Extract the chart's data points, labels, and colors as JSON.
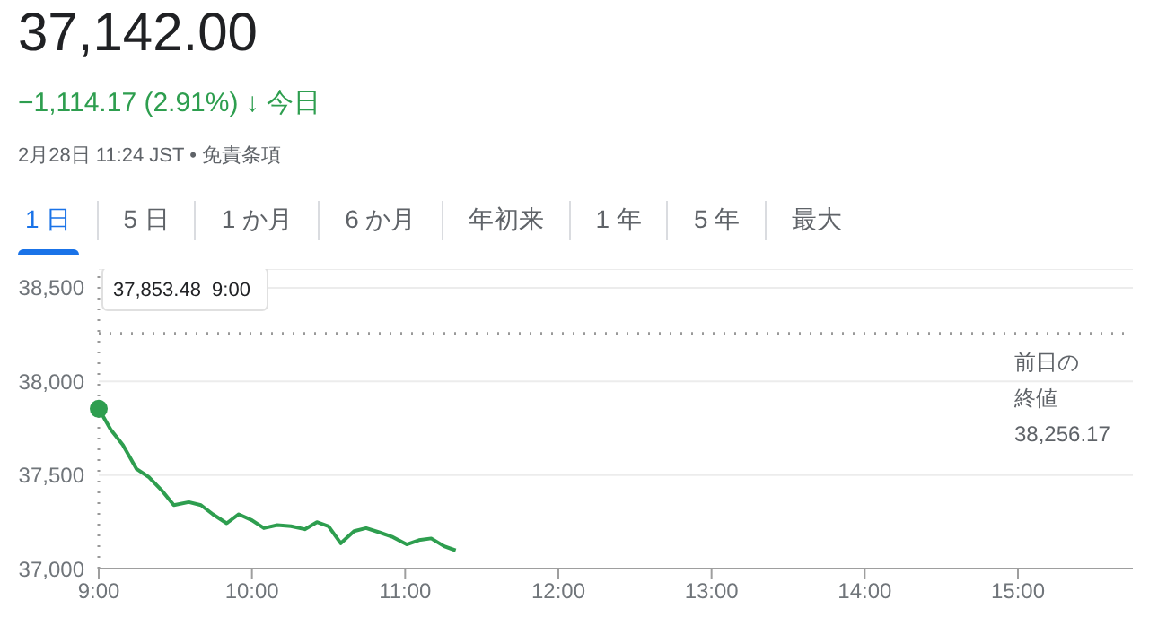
{
  "chart_data": {
    "type": "line",
    "title": "37,142.00",
    "subtitle": "−1,114.17 (2.91%) ↓ 今日",
    "annotations": [
      "2月28日 11:24 JST • 免責条項",
      "1 日",
      "5 日",
      "1 か月",
      "6 か月",
      "年初来",
      "1 年",
      "5 年",
      "最大",
      "37,853.48  9:00"
    ],
    "x": [
      9,
      9.078,
      9.157,
      9.247,
      9.325,
      9.41,
      9.49,
      9.588,
      9.667,
      9.745,
      9.835,
      9.914,
      10,
      10.078,
      10.165,
      10.255,
      10.345,
      10.424,
      10.5,
      10.58,
      10.667,
      10.745,
      10.83,
      10.92,
      11.01,
      11.09,
      11.17,
      11.255,
      11.33
    ],
    "series": [
      {
        "color": "#2e9e4f",
        "values": [
          37853.48,
          37742,
          37661,
          37532,
          37490,
          37419,
          37339,
          37355,
          37339,
          37290,
          37242,
          37290,
          37258,
          37216,
          37232,
          37226,
          37210,
          37248,
          37226,
          37135,
          37200,
          37216,
          37194,
          37168,
          37129,
          37152,
          37161,
          37119,
          37097
        ]
      }
    ],
    "xlim": [
      9,
      15.75
    ],
    "xticks": [
      {
        "value": 9,
        "label": "9:00"
      },
      {
        "value": 10,
        "label": "10:00"
      },
      {
        "value": 11,
        "label": "11:00"
      },
      {
        "value": 12,
        "label": "12:00"
      },
      {
        "value": 13,
        "label": "13:00"
      },
      {
        "value": 14,
        "label": "14:00"
      },
      {
        "value": 15,
        "label": "15:00"
      }
    ],
    "ylim": [
      37000,
      38600
    ],
    "yticks": [
      {
        "value": 37000,
        "label": "37,000"
      },
      {
        "value": 37500,
        "label": "37,500"
      },
      {
        "value": 38000,
        "label": "38,000"
      },
      {
        "value": 38500,
        "label": "38,500"
      }
    ],
    "grid": "y",
    "ref_lines": [
      {
        "axis": "y",
        "value": 38256.17,
        "label": "前日の終値 38,256.17",
        "color": "#999999",
        "line_style": "dotted"
      },
      {
        "axis": "x",
        "value": 9,
        "color": "#999999",
        "line_style": "dotted"
      }
    ]
  }
}
